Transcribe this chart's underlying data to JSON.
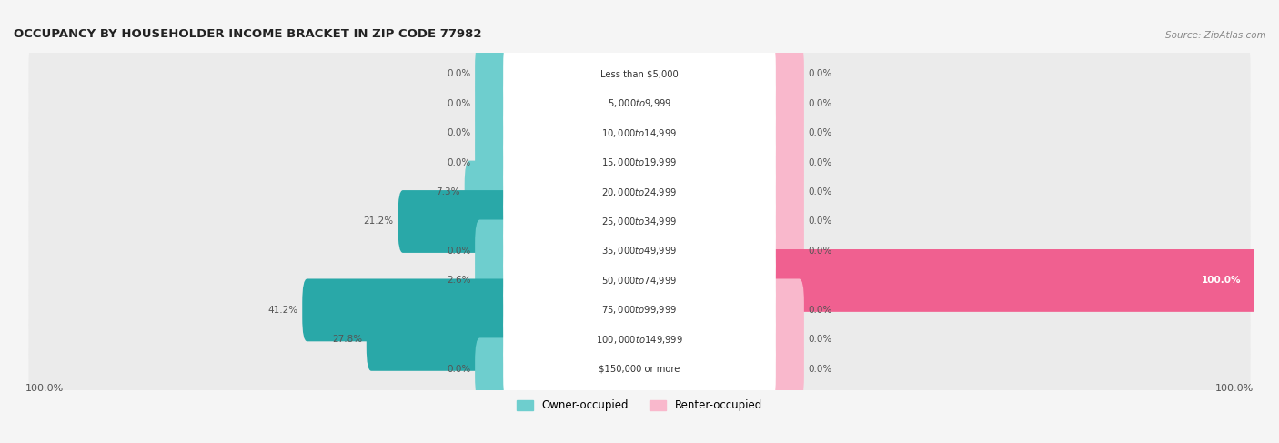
{
  "title": "OCCUPANCY BY HOUSEHOLDER INCOME BRACKET IN ZIP CODE 77982",
  "source": "Source: ZipAtlas.com",
  "categories": [
    "Less than $5,000",
    "$5,000 to $9,999",
    "$10,000 to $14,999",
    "$15,000 to $19,999",
    "$20,000 to $24,999",
    "$25,000 to $34,999",
    "$35,000 to $49,999",
    "$50,000 to $74,999",
    "$75,000 to $99,999",
    "$100,000 to $149,999",
    "$150,000 or more"
  ],
  "owner_pct": [
    0.0,
    0.0,
    0.0,
    0.0,
    7.3,
    21.2,
    0.0,
    2.6,
    41.2,
    27.8,
    0.0
  ],
  "renter_pct": [
    0.0,
    0.0,
    0.0,
    0.0,
    0.0,
    0.0,
    0.0,
    100.0,
    0.0,
    0.0,
    0.0
  ],
  "owner_color_light": "#6ecece",
  "owner_color_dark": "#29a8a8",
  "renter_color_light": "#f9b8cc",
  "renter_color_dark": "#f06090",
  "bg_row": "#ebebeb",
  "bg_main": "#f5f5f5",
  "title_color": "#222222",
  "source_color": "#888888",
  "legend_owner_label": "Owner-occupied",
  "legend_renter_label": "Renter-occupied",
  "min_bar_width": 5.0,
  "max_pct": 100.0,
  "bar_height": 0.52
}
